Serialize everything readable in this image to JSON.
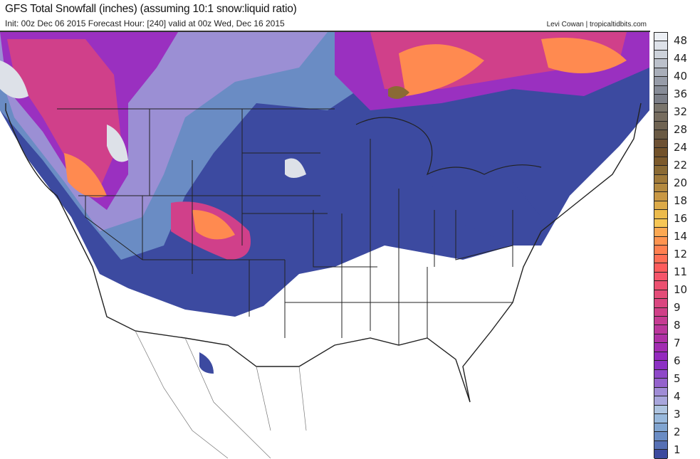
{
  "header": {
    "title": "GFS Total Snowfall (inches) (assuming 10:1 snow:liquid ratio)",
    "subtitle": "Init: 00z Dec 06 2015   Forecast Hour: [240]   valid at 00z Wed, Dec 16 2015",
    "credit": "Levi Cowan | tropicaltidbits.com"
  },
  "colorbar": {
    "labels": [
      "48",
      "44",
      "40",
      "36",
      "32",
      "28",
      "24",
      "22",
      "20",
      "18",
      "16",
      "14",
      "12",
      "11",
      "10",
      "9",
      "8",
      "7",
      "6",
      "5",
      "4",
      "3",
      "2",
      "1"
    ],
    "colors": [
      "#eceff4",
      "#dde1e8",
      "#cdd2da",
      "#bcc1cb",
      "#a9aeb9",
      "#979ca8",
      "#878c97",
      "#7c7f88",
      "#7a756c",
      "#766c5e",
      "#6f6352",
      "#6a5a44",
      "#6d5133",
      "#72522a",
      "#7c5a2c",
      "#8a6a34",
      "#a07a3a",
      "#b48a40",
      "#c99844",
      "#dcaa48",
      "#ecbb4c",
      "#f6c655",
      "#fba852",
      "#fe9450",
      "#ff8050",
      "#ff6e55",
      "#fd5c5c",
      "#f5556a",
      "#ec5070",
      "#e44c78",
      "#da4680",
      "#d04088",
      "#c63b92",
      "#bb369c",
      "#af30a6",
      "#a22cb2",
      "#942abe",
      "#8c30c4",
      "#8e48c8",
      "#9462cc",
      "#a08cd6",
      "#a8a6dc",
      "#aec4e0",
      "#98b8dc",
      "#80a4d0",
      "#6a8cc4",
      "#5670b4",
      "#3c4a9e"
    ],
    "units": "inches"
  },
  "map": {
    "snow_colors": {
      "light": "#3c4aa0",
      "low": "#6a8cc4",
      "mid": "#9b8fd4",
      "purple": "#9a30c0",
      "magenta": "#d0408a",
      "orange": "#ff8a50",
      "brown": "#8a6a34",
      "white": "#dde1e8"
    }
  }
}
